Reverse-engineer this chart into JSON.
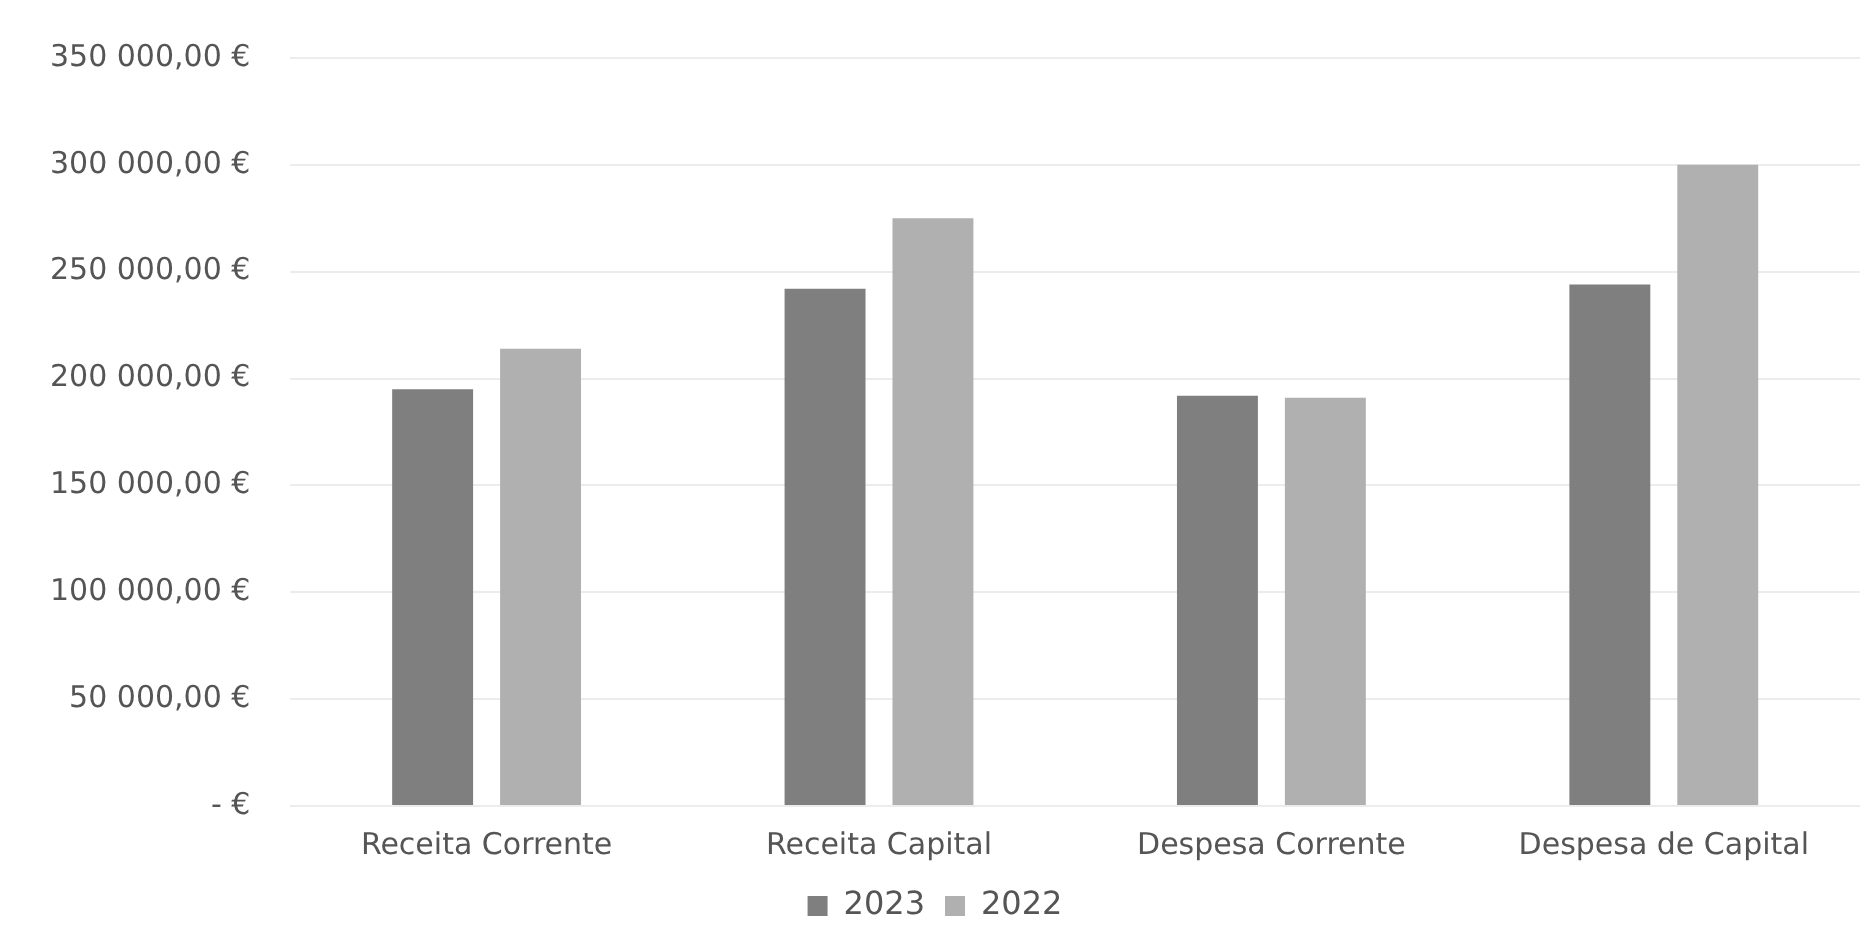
{
  "chart_data": {
    "type": "bar",
    "categories": [
      "Receita Corrente",
      "Receita Capital",
      "Despesa Corrente",
      "Despesa de Capital"
    ],
    "series": [
      {
        "name": "2023",
        "color": "#7f7f7f",
        "values": [
          195000,
          242000,
          192000,
          244000
        ]
      },
      {
        "name": "2022",
        "color": "#b0b0b0",
        "values": [
          214000,
          275000,
          191000,
          300000
        ]
      }
    ],
    "ylim": [
      0,
      350000
    ],
    "yticks": [
      {
        "value": 0,
        "label": "- €"
      },
      {
        "value": 50000,
        "label": "50 000,00 €"
      },
      {
        "value": 100000,
        "label": "100 000,00 €"
      },
      {
        "value": 150000,
        "label": "150 000,00 €"
      },
      {
        "value": 200000,
        "label": "200 000,00 €"
      },
      {
        "value": 250000,
        "label": "250 000,00 €"
      },
      {
        "value": 300000,
        "label": "300 000,00 €"
      },
      {
        "value": 350000,
        "label": "350 000,00 €"
      }
    ],
    "grid": "y",
    "legend": "bottom"
  }
}
